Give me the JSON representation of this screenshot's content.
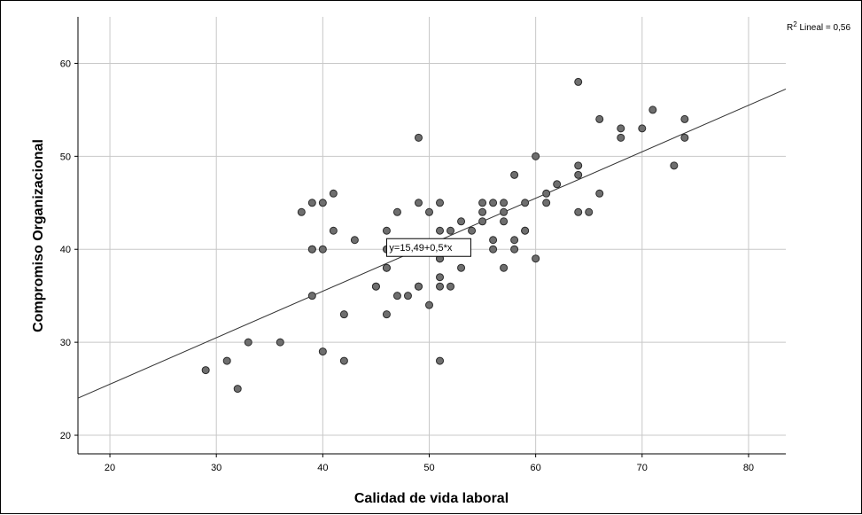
{
  "chart_data": {
    "type": "scatter",
    "title": "",
    "xlabel": "Calidad de vida laboral",
    "ylabel": "Compromiso Organizacional",
    "xlim": [
      17,
      83.5
    ],
    "ylim": [
      18,
      65
    ],
    "xticks": [
      20,
      30,
      40,
      50,
      60,
      70,
      80
    ],
    "yticks": [
      20,
      30,
      40,
      50,
      60
    ],
    "grid": true,
    "points": [
      [
        29,
        27
      ],
      [
        31,
        28
      ],
      [
        32,
        25
      ],
      [
        33,
        30
      ],
      [
        36,
        30
      ],
      [
        38,
        44
      ],
      [
        39,
        45
      ],
      [
        39,
        40
      ],
      [
        39,
        40
      ],
      [
        39,
        35
      ],
      [
        40,
        45
      ],
      [
        40,
        40
      ],
      [
        40,
        29
      ],
      [
        41,
        46
      ],
      [
        41,
        42
      ],
      [
        42,
        33
      ],
      [
        42,
        28
      ],
      [
        43,
        41
      ],
      [
        45,
        36
      ],
      [
        45,
        36
      ],
      [
        46,
        42
      ],
      [
        46,
        40
      ],
      [
        46,
        38
      ],
      [
        46,
        38
      ],
      [
        46,
        33
      ],
      [
        47,
        44
      ],
      [
        47,
        35
      ],
      [
        48,
        35
      ],
      [
        49,
        52
      ],
      [
        49,
        45
      ],
      [
        49,
        36
      ],
      [
        49,
        36
      ],
      [
        50,
        44
      ],
      [
        50,
        34
      ],
      [
        51,
        45
      ],
      [
        51,
        42
      ],
      [
        51,
        39
      ],
      [
        51,
        39
      ],
      [
        51,
        37
      ],
      [
        51,
        36
      ],
      [
        51,
        28
      ],
      [
        52,
        42
      ],
      [
        52,
        36
      ],
      [
        53,
        43
      ],
      [
        53,
        38
      ],
      [
        54,
        42
      ],
      [
        55,
        45
      ],
      [
        55,
        44
      ],
      [
        55,
        43
      ],
      [
        56,
        45
      ],
      [
        56,
        41
      ],
      [
        56,
        40
      ],
      [
        57,
        45
      ],
      [
        57,
        44
      ],
      [
        57,
        43
      ],
      [
        57,
        38
      ],
      [
        58,
        48
      ],
      [
        58,
        41
      ],
      [
        58,
        40
      ],
      [
        59,
        45
      ],
      [
        59,
        42
      ],
      [
        59,
        42
      ],
      [
        60,
        50
      ],
      [
        60,
        39
      ],
      [
        61,
        46
      ],
      [
        61,
        45
      ],
      [
        62,
        47
      ],
      [
        64,
        58
      ],
      [
        64,
        49
      ],
      [
        64,
        48
      ],
      [
        64,
        44
      ],
      [
        65,
        44
      ],
      [
        66,
        54
      ],
      [
        66,
        46
      ],
      [
        68,
        53
      ],
      [
        68,
        52
      ],
      [
        70,
        53
      ],
      [
        71,
        55
      ],
      [
        73,
        49
      ],
      [
        74,
        54
      ],
      [
        74,
        52
      ]
    ],
    "fit_line": {
      "intercept": 15.49,
      "slope": 0.5,
      "label": "y=15,49+0,5*x",
      "label_at": [
        46,
        40
      ]
    },
    "r2_label": {
      "sup": "2",
      "text": " Lineal = 0,56"
    },
    "colors": {
      "point_fill": "#6e6e6e",
      "point_stroke": "#2b2b2b",
      "grid": "#c8c8c8",
      "line": "#333333"
    }
  }
}
